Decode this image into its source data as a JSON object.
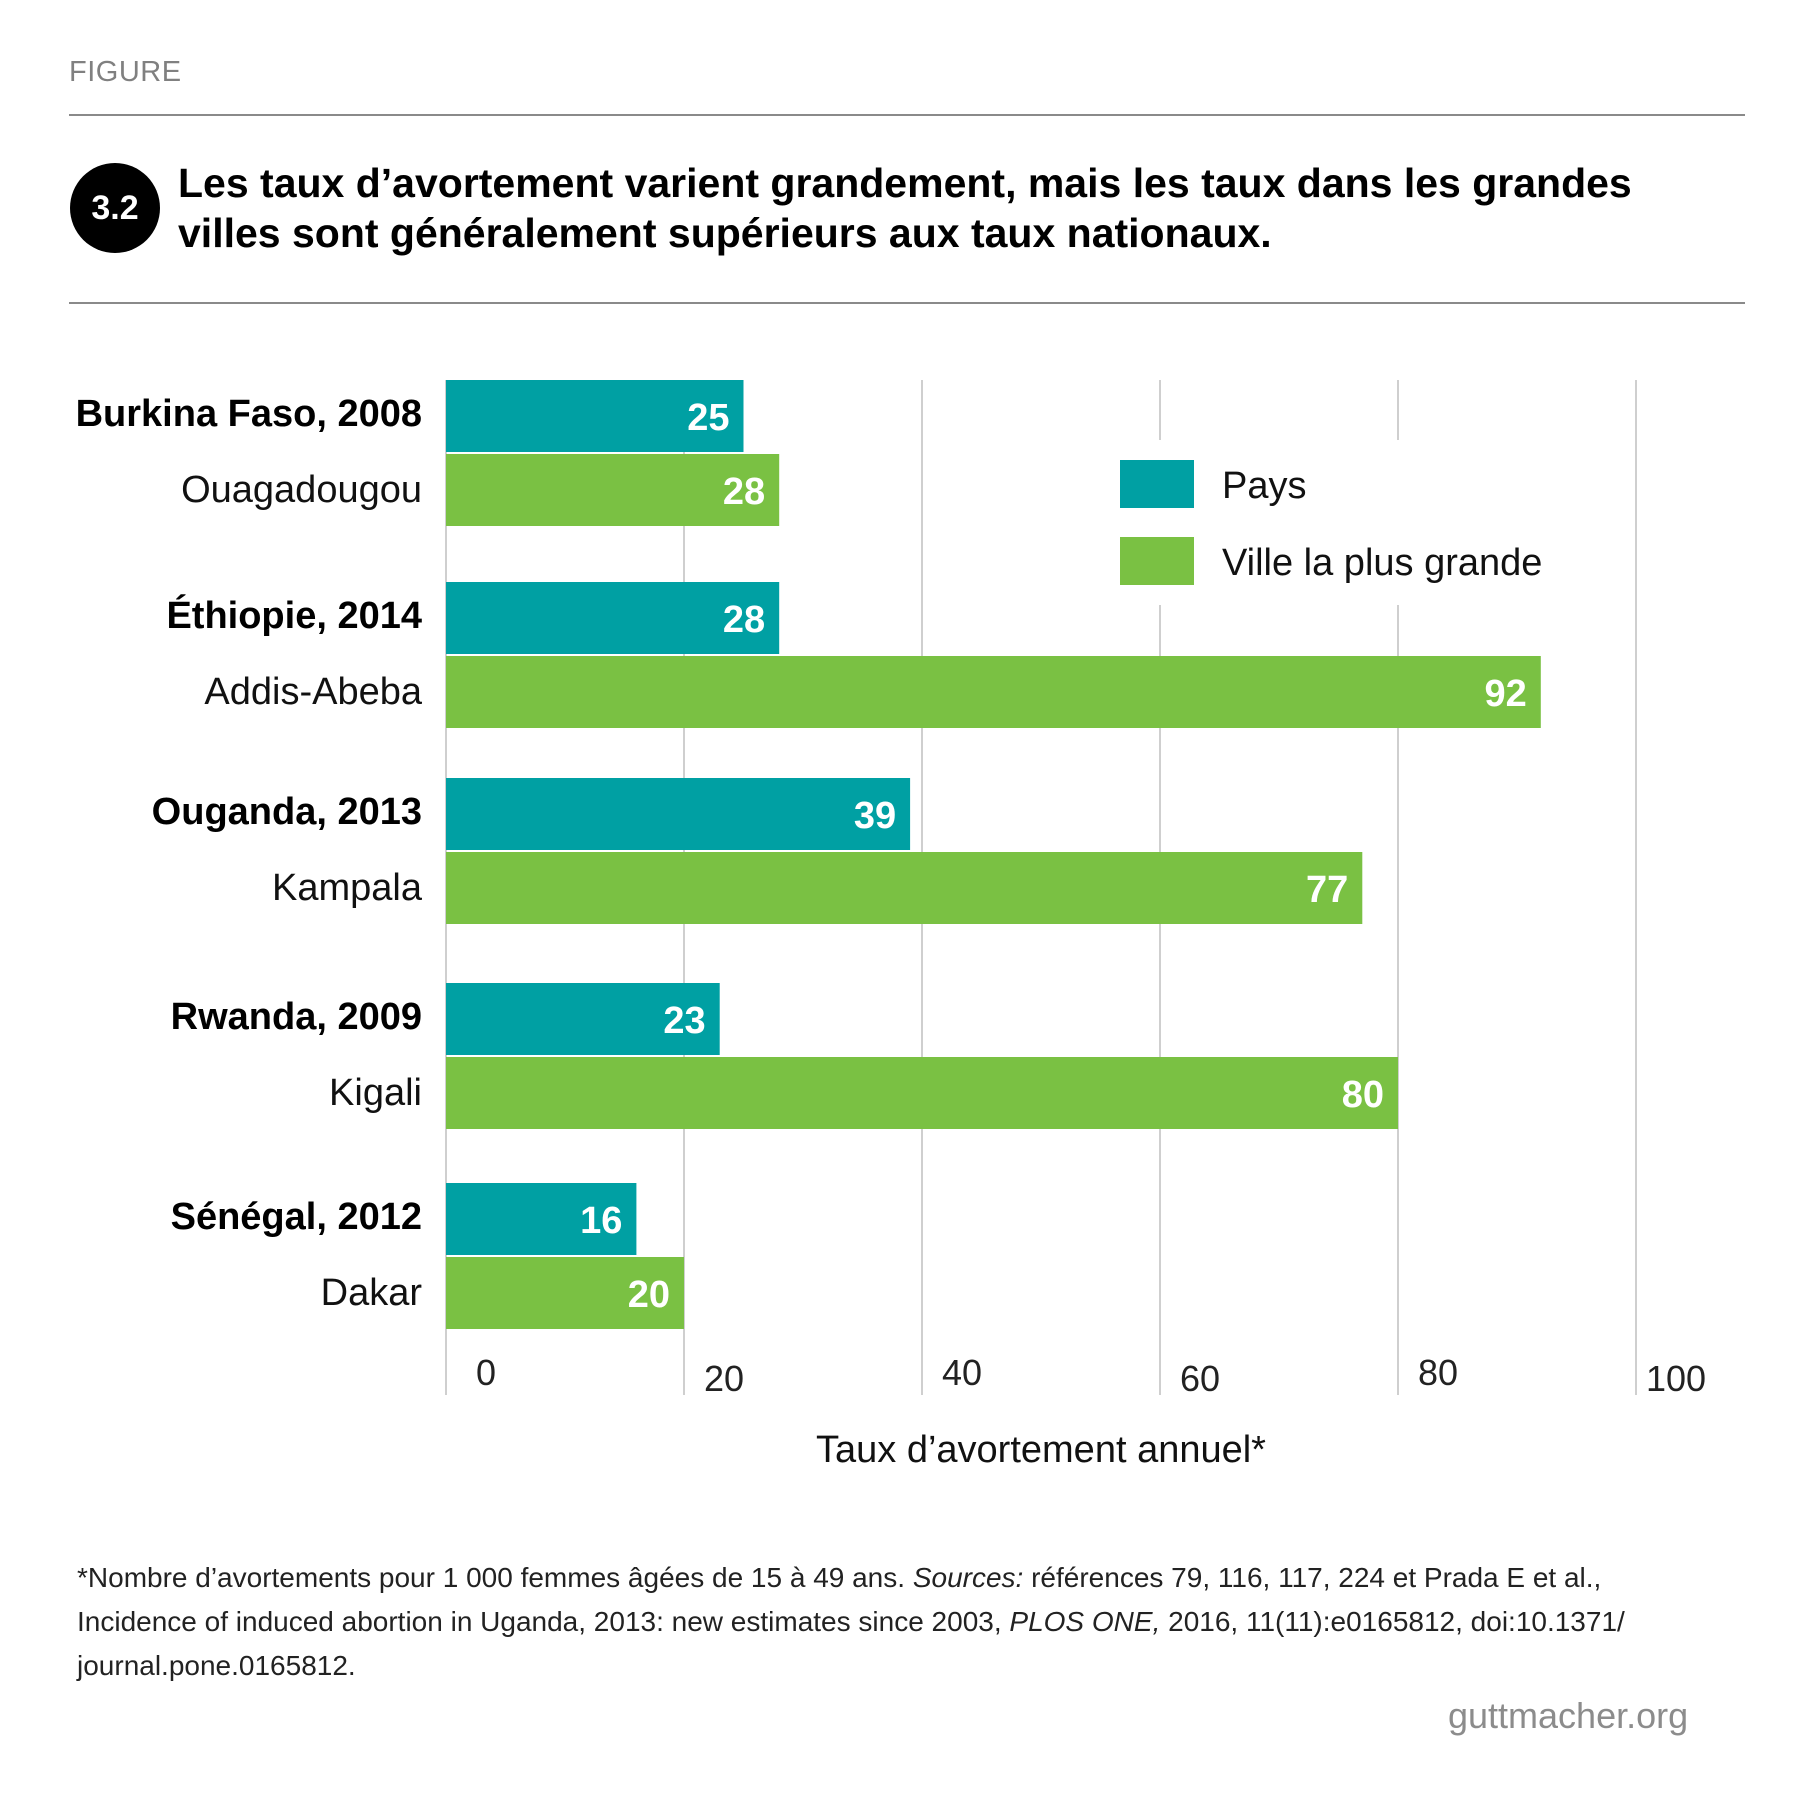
{
  "header": {
    "kicker": "FIGURE",
    "badge": "3.2",
    "title": "Les taux d’avortement varient grandement, mais les taux dans les grandes villes sont généralement supérieurs aux taux nationaux."
  },
  "chart_data": {
    "type": "bar",
    "orientation": "horizontal",
    "xlabel": "Taux d’avortement annuel*",
    "xlim": [
      0,
      100
    ],
    "xticks": [
      0,
      20,
      40,
      60,
      80,
      100
    ],
    "grid": true,
    "legend_position": "top-right",
    "series": [
      {
        "name": "Pays",
        "color": "#00a0a3"
      },
      {
        "name": "Ville la plus grande",
        "color": "#7ac143"
      }
    ],
    "groups": [
      {
        "country": "Burkina Faso, 2008",
        "city": "Ouagadougou",
        "values": [
          25,
          28
        ]
      },
      {
        "country": "Éthiopie, 2014",
        "city": "Addis-Abeba",
        "values": [
          28,
          92
        ]
      },
      {
        "country": "Ouganda, 2013",
        "city": "Kampala",
        "values": [
          39,
          77
        ]
      },
      {
        "country": "Rwanda, 2009",
        "city": "Kigali",
        "values": [
          23,
          80
        ]
      },
      {
        "country": "Sénégal, 2012",
        "city": "Dakar",
        "values": [
          16,
          20
        ]
      }
    ]
  },
  "footnote": {
    "part1": "*Nombre d’avortements pour 1 000 femmes âgées de 15 à 49 ans. ",
    "sources_label": "Sources:",
    "part2": " références 79, 116, 117, 224 et Prada E et al., Incidence of induced abortion in Uganda, 2013: new estimates since 2003, ",
    "journal": "PLOS ONE,",
    "part3": " 2016, 11(11):e0165812, doi:10.1371/ journal.pone.0165812."
  },
  "brand": "guttmacher.org"
}
